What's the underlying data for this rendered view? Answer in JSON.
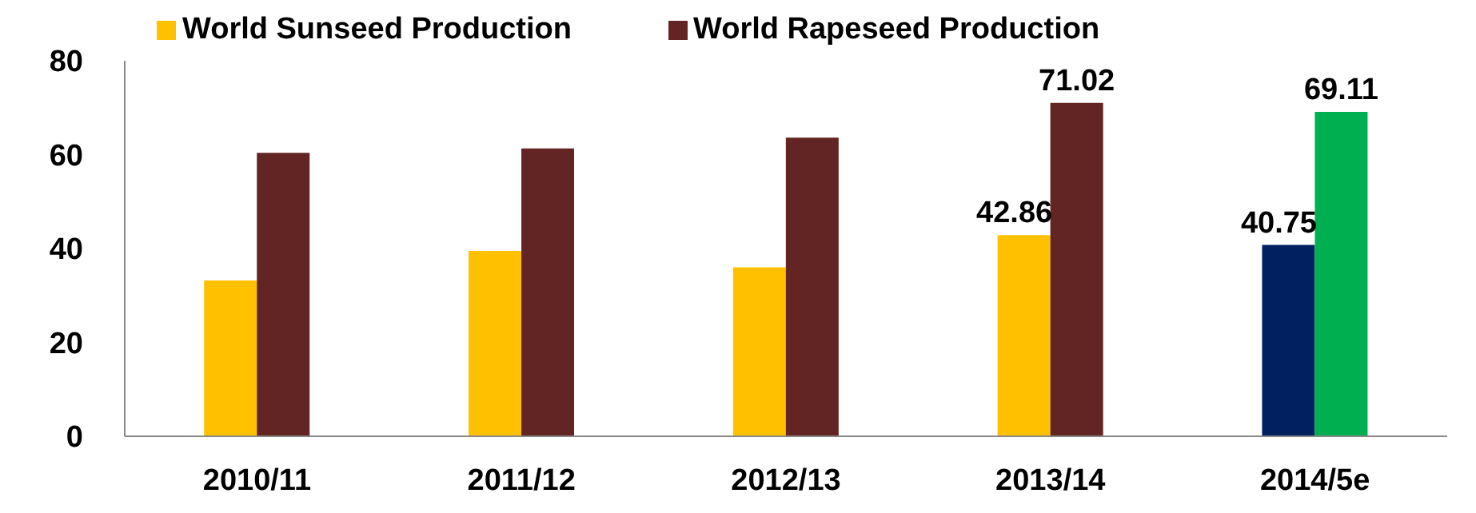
{
  "chart_data": {
    "type": "bar",
    "categories": [
      "2010/11",
      "2011/12",
      "2012/13",
      "2013/14",
      "2014/5e"
    ],
    "series": [
      {
        "name": "World Sunseed Production",
        "color": "#ffc000",
        "colors": [
          "#ffc000",
          "#ffc000",
          "#ffc000",
          "#ffc000",
          "#002060"
        ],
        "values": [
          33.2,
          39.5,
          36.0,
          42.86,
          40.75
        ],
        "value_labels": [
          null,
          null,
          null,
          "42.86",
          "40.75"
        ]
      },
      {
        "name": "World Rapeseed Production",
        "color": "#632523",
        "colors": [
          "#632523",
          "#632523",
          "#632523",
          "#632523",
          "#00b050"
        ],
        "values": [
          60.4,
          61.3,
          63.6,
          71.02,
          69.11
        ],
        "value_labels": [
          null,
          null,
          null,
          "71.02",
          "69.11"
        ]
      }
    ],
    "ylim": [
      0,
      80
    ],
    "yticks": [
      0,
      20,
      40,
      60,
      80
    ],
    "grid": false,
    "legend": "top left"
  }
}
